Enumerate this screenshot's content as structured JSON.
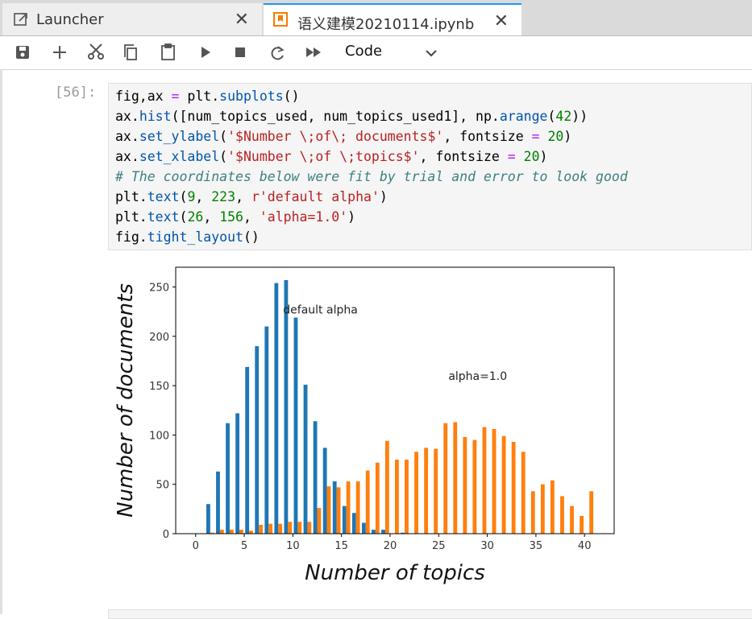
{
  "tabs": [
    "Launcher",
    "语义建模20210114.ipynb"
  ],
  "toolbar": {
    "cell_type": "Code"
  },
  "cell": {
    "prompt": "[56]:",
    "code": [
      "fig,ax = plt.subplots()",
      "ax.hist([num_topics_used, num_topics_used1], np.arange(42))",
      "ax.set_ylabel('$Number \\;of\\; documents$', fontsize = 20)",
      "ax.set_xlabel('$Number \\;of \\;topics$', fontsize = 20)",
      "# The coordinates below were fit by trial and error to look good",
      "plt.text(9, 223, r'default alpha')",
      "plt.text(26, 156, 'alpha=1.0')",
      "fig.tight_layout()"
    ]
  },
  "chart_data": {
    "type": "histogram",
    "xlabel": "Number of topics",
    "ylabel": "Number of documents",
    "bins": [
      0,
      1,
      2,
      3,
      4,
      5,
      6,
      7,
      8,
      9,
      10,
      11,
      12,
      13,
      14,
      15,
      16,
      17,
      18,
      19,
      20,
      21,
      22,
      23,
      24,
      25,
      26,
      27,
      28,
      29,
      30,
      31,
      32,
      33,
      34,
      35,
      36,
      37,
      38,
      39,
      40,
      41
    ],
    "series": [
      {
        "color": "#1f77b4",
        "values": [
          0,
          30,
          63,
          112,
          122,
          169,
          190,
          210,
          254,
          257,
          219,
          151,
          114,
          87,
          53,
          28,
          21,
          11,
          4,
          4,
          0,
          1,
          0,
          0,
          0,
          0,
          0,
          0,
          0,
          0,
          0,
          0,
          0,
          0,
          0,
          0,
          0,
          0,
          0,
          0,
          0
        ]
      },
      {
        "color": "#ff7f0e",
        "values": [
          0,
          1,
          4,
          4,
          4,
          3,
          9,
          10,
          10,
          12,
          12,
          12,
          26,
          48,
          47,
          53,
          53,
          64,
          72,
          94,
          75,
          75,
          83,
          87,
          86,
          112,
          113,
          98,
          95,
          108,
          106,
          99,
          93,
          83,
          43,
          50,
          54,
          38,
          28,
          18,
          43
        ]
      }
    ],
    "annotations": [
      {
        "text": "default alpha",
        "x": 9,
        "y": 223
      },
      {
        "text": "alpha=1.0",
        "x": 26,
        "y": 156
      }
    ],
    "xlim": [
      -2.05,
      43.05
    ],
    "ylim": [
      0,
      270
    ],
    "xticks": [
      0,
      5,
      10,
      15,
      20,
      25,
      30,
      35,
      40
    ],
    "yticks": [
      0,
      50,
      100,
      150,
      200,
      250
    ]
  }
}
